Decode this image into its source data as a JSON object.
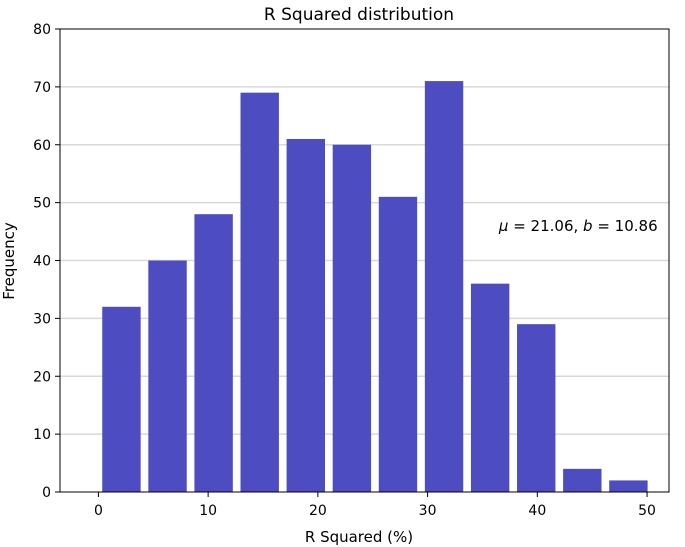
{
  "chart_data": {
    "type": "bar",
    "title": "R Squared distribution",
    "xlabel": "R Squared (%)",
    "ylabel": "Frequency",
    "xlim": [
      -3.5,
      52
    ],
    "ylim": [
      0,
      80
    ],
    "xticks": [
      0,
      10,
      20,
      30,
      40,
      50
    ],
    "yticks": [
      0,
      10,
      20,
      30,
      40,
      50,
      60,
      70,
      80
    ],
    "grid": "y",
    "bar_color": "#4d4dc1",
    "bin_width": 4.2,
    "bar_width": 3.5,
    "bars": [
      {
        "x": 2.1,
        "value": 32
      },
      {
        "x": 6.3,
        "value": 40
      },
      {
        "x": 10.5,
        "value": 48
      },
      {
        "x": 14.7,
        "value": 69
      },
      {
        "x": 18.9,
        "value": 61
      },
      {
        "x": 23.1,
        "value": 60
      },
      {
        "x": 27.3,
        "value": 51
      },
      {
        "x": 31.5,
        "value": 71
      },
      {
        "x": 35.7,
        "value": 36
      },
      {
        "x": 39.9,
        "value": 29
      },
      {
        "x": 44.1,
        "value": 4
      },
      {
        "x": 48.3,
        "value": 2
      }
    ],
    "annotation": {
      "mu_symbol": "μ",
      "b_symbol": "b",
      "mu_text": " = 21.06, ",
      "b_text": " = 10.86",
      "x": 36.5,
      "y": 46
    }
  }
}
